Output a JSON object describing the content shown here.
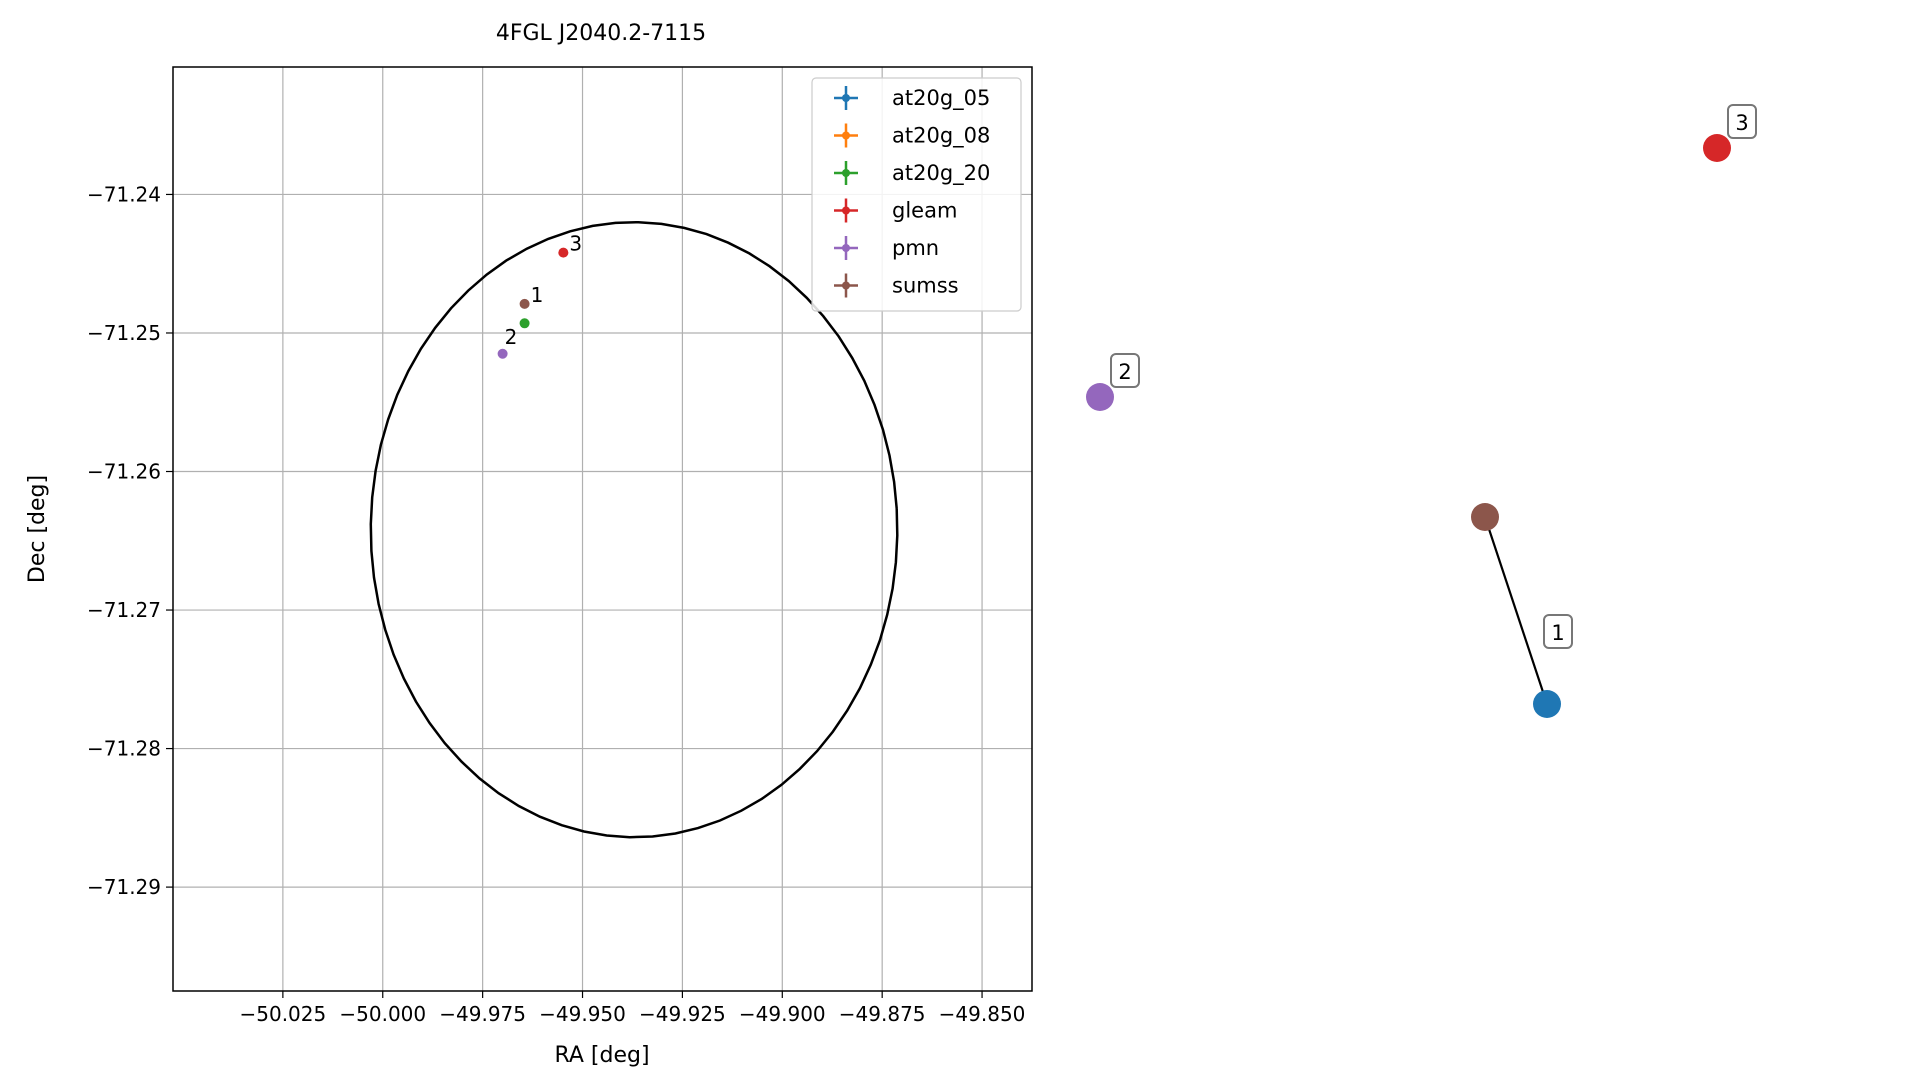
{
  "chart_data": [
    {
      "type": "scatter",
      "title": "4FGL J2040.2-7115",
      "xlabel": "RA [deg]",
      "ylabel": "Dec [deg]",
      "xlim": [
        -50.0525,
        -49.8375
      ],
      "ylim": [
        -71.2975,
        -71.2308
      ],
      "x_ticks": [
        -50.025,
        -50.0,
        -49.975,
        -49.95,
        -49.925,
        -49.9,
        -49.875,
        -49.85
      ],
      "x_tick_labels": [
        "−50.025",
        "−50.000",
        "−49.975",
        "−49.950",
        "−49.925",
        "−49.900",
        "−49.875",
        "−49.850"
      ],
      "y_ticks": [
        -71.24,
        -71.25,
        -71.26,
        -71.27,
        -71.28,
        -71.29
      ],
      "y_tick_labels": [
        "−71.24",
        "−71.25",
        "−71.26",
        "−71.27",
        "−71.28",
        "−71.29"
      ],
      "grid": true,
      "legend_position": "top-right",
      "series": [
        {
          "name": "at20g_05",
          "color": "#1f77b4",
          "points": []
        },
        {
          "name": "at20g_08",
          "color": "#ff7f0e",
          "points": []
        },
        {
          "name": "at20g_20",
          "color": "#2ca02c",
          "points": [
            {
              "x": -49.9645,
              "y": -71.2493
            }
          ]
        },
        {
          "name": "gleam",
          "color": "#d62728",
          "points": [
            {
              "x": -49.9548,
              "y": -71.2442
            }
          ]
        },
        {
          "name": "pmn",
          "color": "#9467bd",
          "points": [
            {
              "x": -49.97,
              "y": -71.2515
            }
          ]
        },
        {
          "name": "sumss",
          "color": "#8c564b",
          "points": [
            {
              "x": -49.9645,
              "y": -71.2479
            }
          ]
        }
      ],
      "annotations": [
        {
          "text": "1",
          "x": -49.9645,
          "y": -71.2479
        },
        {
          "text": "2",
          "x": -49.97,
          "y": -71.2515
        },
        {
          "text": "3",
          "x": -49.9548,
          "y": -71.2442
        }
      ],
      "ellipse": {
        "center_x": -49.9371,
        "center_y": -71.2642,
        "ra_semi_axis": 0.0659,
        "dec_semi_axis": 0.0222,
        "angle": 4,
        "color": "#000000"
      }
    },
    {
      "type": "scatter",
      "nodes": [
        {
          "label": "1",
          "color": "#1f77b4"
        },
        {
          "label": "",
          "color": "#8c564b"
        },
        {
          "label": "2",
          "color": "#9467bd"
        },
        {
          "label": "3",
          "color": "#d62728"
        }
      ],
      "edges": [
        [
          0,
          1
        ]
      ]
    }
  ]
}
